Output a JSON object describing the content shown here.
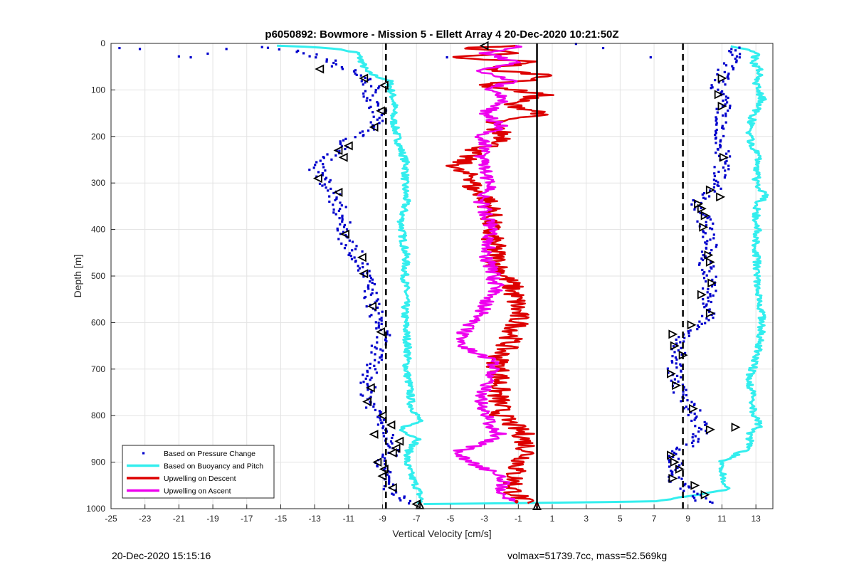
{
  "chart_data": {
    "type": "scatter",
    "title": "p6050892: Bowmore - Mission 5 - Ellett Array 4 20-Dec-2020 10:21:50Z",
    "xlabel": "Vertical Velocity [cm/s]",
    "ylabel": "Depth [m]",
    "xlim": [
      -25,
      14
    ],
    "ylim": [
      0,
      1000
    ],
    "y_reversed": true,
    "grid": true,
    "x_ticks": [
      -25,
      -23,
      -21,
      -19,
      -17,
      -15,
      -13,
      -11,
      -9,
      -7,
      -5,
      -3,
      -1,
      1,
      3,
      5,
      7,
      9,
      11,
      13
    ],
    "y_ticks": [
      0,
      100,
      200,
      300,
      400,
      500,
      600,
      700,
      800,
      900,
      1000
    ],
    "legend_position": "bottom-left",
    "reference_lines": [
      {
        "style": "dashed",
        "color": "#000000",
        "x": -8.8
      },
      {
        "style": "solid",
        "color": "#000000",
        "x": 0.1
      },
      {
        "style": "dashed",
        "color": "#000000",
        "x": 8.7
      }
    ],
    "series": [
      {
        "name": "Based on Pressure Change",
        "style": "points",
        "color": "#0000cc",
        "profiles": [
          {
            "depth": [
              10,
              20,
              35,
              50,
              70,
              95,
              120,
              150,
              180,
              210,
              240,
              270,
              300,
              330,
              360,
              390,
              420,
              450,
              480,
              510,
              540,
              570,
              600,
              630,
              660,
              690,
              720,
              750,
              780,
              810,
              840,
              870,
              900,
              930,
              960,
              990
            ],
            "velocity": [
              -15.5,
              -13.5,
              -12.3,
              -11.5,
              -10.2,
              -9.6,
              -9.8,
              -9.1,
              -9.6,
              -11.1,
              -12.0,
              -12.9,
              -12.3,
              -11.8,
              -11.5,
              -11.3,
              -11.2,
              -10.6,
              -10.2,
              -9.9,
              -9.7,
              -9.5,
              -9.2,
              -9.0,
              -9.3,
              -9.6,
              -9.8,
              -9.9,
              -9.6,
              -9.0,
              -8.6,
              -8.2,
              -9.0,
              -8.9,
              -8.5,
              -7.6
            ]
          },
          {
            "depth": [
              10,
              25,
              50,
              75,
              100,
              130,
              160,
              190,
              220,
              250,
              280,
              310,
              340,
              370,
              400,
              430,
              460,
              490,
              520,
              550,
              580,
              610,
              640,
              670,
              700,
              730,
              760,
              790,
              820,
              850,
              880,
              910,
              940,
              970,
              990
            ],
            "velocity": [
              11.6,
              11.8,
              11.3,
              11.0,
              10.7,
              11.1,
              11.0,
              10.6,
              10.9,
              11.1,
              10.9,
              10.8,
              9.6,
              9.8,
              10.2,
              10.3,
              10.0,
              10.2,
              10.4,
              10.0,
              10.3,
              9.6,
              8.3,
              8.5,
              8.2,
              8.3,
              8.7,
              9.3,
              9.8,
              9.7,
              8.1,
              8.3,
              8.2,
              9.4,
              10.1
            ]
          }
        ],
        "outliers": [
          [
            -24.5,
            10
          ],
          [
            -23.3,
            12
          ],
          [
            -21.0,
            28
          ],
          [
            -20.3,
            30
          ],
          [
            -19.3,
            22
          ],
          [
            -18.2,
            12
          ],
          [
            -16.1,
            8
          ],
          [
            6.8,
            30
          ],
          [
            4.0,
            10
          ],
          [
            11.8,
            15
          ],
          [
            2.4,
            1
          ],
          [
            -5.2,
            30
          ]
        ]
      },
      {
        "name": "Based on Buoyancy and Pitch",
        "style": "line",
        "color": "#33eeee",
        "profiles": [
          {
            "depth": [
              5,
              10,
              20,
              40,
              60,
              70,
              80,
              100,
              130,
              160,
              190,
              220,
              260,
              300,
              340,
              380,
              420,
              460,
              500,
              540,
              580,
              620,
              660,
              700,
              740,
              780,
              810,
              830,
              850,
              870,
              900,
              930,
              960,
              985,
              990
            ],
            "velocity": [
              -15.0,
              -12.0,
              -10.5,
              -10.2,
              -10.0,
              -9.4,
              -8.6,
              -8.5,
              -8.3,
              -8.4,
              -8.2,
              -8.0,
              -7.6,
              -7.7,
              -7.6,
              -7.9,
              -7.8,
              -7.6,
              -7.7,
              -7.6,
              -7.7,
              -7.6,
              -7.5,
              -7.6,
              -7.4,
              -7.3,
              -6.8,
              -8.0,
              -6.8,
              -7.4,
              -7.6,
              -7.3,
              -6.9,
              -6.7,
              -7.0
            ]
          },
          {
            "depth": [
              990,
              985,
              960,
              930,
              900,
              870,
              830,
              825,
              800,
              760,
              720,
              680,
              640,
              600,
              560,
              520,
              480,
              440,
              400,
              360,
              340,
              330,
              300,
              250,
              200,
              160,
              120,
              90,
              60,
              40,
              20,
              5
            ],
            "velocity": [
              -6.7,
              6.9,
              11.3,
              11.1,
              10.9,
              12.6,
              12.7,
              13.3,
              12.9,
              12.8,
              12.6,
              13.0,
              13.2,
              13.4,
              13.3,
              13.0,
              13.1,
              13.0,
              13.1,
              13.0,
              13.2,
              13.6,
              13.0,
              13.2,
              12.6,
              12.8,
              13.4,
              13.0,
              13.3,
              12.8,
              13.1,
              11.6
            ]
          }
        ]
      },
      {
        "name": "Upwelling on Descent",
        "style": "line",
        "color": "#dd0000",
        "profiles": [
          {
            "depth": [
              5,
              10,
              20,
              30,
              40,
              55,
              70,
              90,
              110,
              130,
              150,
              170,
              190,
              210,
              230,
              250,
              270,
              290,
              310,
              330,
              360,
              400,
              440,
              480,
              520,
              560,
              600,
              640,
              680,
              720,
              760,
              800,
              840,
              880,
              920,
              960,
              990
            ],
            "velocity": [
              -1.0,
              -5.0,
              -0.8,
              -5.5,
              0.3,
              -3.2,
              1.4,
              -3.1,
              0.5,
              -1.7,
              0.6,
              -2.8,
              -2.1,
              -1.6,
              -3.6,
              -4.2,
              -4.8,
              -3.5,
              -3.8,
              -2.9,
              -2.6,
              -2.7,
              -2.4,
              -2.2,
              -1.4,
              -1.1,
              -1.0,
              -1.5,
              -2.2,
              -2.1,
              -2.2,
              -2.0,
              -0.7,
              -0.4,
              -1.2,
              -1.3,
              -0.6
            ]
          }
        ],
        "scatter_points": [
          [
            -1.1,
            985
          ],
          [
            0.1,
            990
          ]
        ]
      },
      {
        "name": "Upwelling on Ascent",
        "style": "line",
        "color": "#ee00ee",
        "profiles": [
          {
            "depth": [
              985,
              960,
              930,
              900,
              880,
              860,
              840,
              820,
              800,
              780,
              760,
              740,
              720,
              700,
              680,
              660,
              640,
              620,
              600,
              580,
              560,
              540,
              520,
              500,
              480,
              460,
              440,
              420,
              400,
              370,
              340,
              310,
              280,
              250,
              220,
              200,
              180,
              150,
              120,
              100,
              80,
              60,
              40,
              20,
              5
            ],
            "velocity": [
              -1.4,
              -2.0,
              -1.9,
              -3.8,
              -4.8,
              -3.2,
              -2.1,
              -2.6,
              -2.8,
              -3.2,
              -3.3,
              -3.0,
              -2.7,
              -2.4,
              -2.6,
              -3.8,
              -4.6,
              -4.2,
              -3.8,
              -3.2,
              -2.9,
              -2.5,
              -2.3,
              -2.5,
              -2.6,
              -2.9,
              -2.8,
              -2.7,
              -2.6,
              -2.8,
              -3.2,
              -2.6,
              -2.9,
              -3.2,
              -2.8,
              -3.6,
              -1.9,
              -3.0,
              -1.6,
              -2.9,
              -1.2,
              -3.4,
              -1.2,
              -3.0,
              -0.8
            ]
          }
        ]
      }
    ],
    "marker_series": [
      {
        "marker": "triangle-left",
        "color": "#000000",
        "points": [
          [
            -12.7,
            55
          ],
          [
            -10.1,
            75
          ],
          [
            -8.9,
            90
          ],
          [
            -9.1,
            145
          ],
          [
            -9.5,
            180
          ],
          [
            -11.0,
            220
          ],
          [
            -11.6,
            230
          ],
          [
            -11.3,
            245
          ],
          [
            -12.8,
            290
          ],
          [
            -11.6,
            320
          ],
          [
            -11.2,
            410
          ],
          [
            -10.2,
            460
          ],
          [
            -10.1,
            495
          ],
          [
            -9.6,
            565
          ],
          [
            -9.1,
            620
          ],
          [
            -9.7,
            740
          ],
          [
            -9.9,
            770
          ],
          [
            -9.0,
            800
          ],
          [
            -8.5,
            820
          ],
          [
            -9.5,
            840
          ],
          [
            -8.0,
            855
          ],
          [
            -8.2,
            870
          ],
          [
            -8.4,
            880
          ],
          [
            -9.3,
            900
          ],
          [
            -8.9,
            915
          ],
          [
            -9.0,
            930
          ],
          [
            -8.4,
            955
          ],
          [
            -7.0,
            990
          ],
          [
            -3.0,
            5
          ]
        ]
      },
      {
        "marker": "triangle-right",
        "color": "#000000",
        "points": [
          [
            11.0,
            75
          ],
          [
            10.8,
            110
          ],
          [
            11.0,
            135
          ],
          [
            11.1,
            245
          ],
          [
            10.3,
            315
          ],
          [
            10.9,
            330
          ],
          [
            9.6,
            345
          ],
          [
            9.8,
            355
          ],
          [
            10.0,
            370
          ],
          [
            9.9,
            395
          ],
          [
            10.2,
            455
          ],
          [
            10.3,
            470
          ],
          [
            10.4,
            515
          ],
          [
            9.8,
            540
          ],
          [
            10.3,
            580
          ],
          [
            9.2,
            605
          ],
          [
            8.1,
            625
          ],
          [
            8.2,
            650
          ],
          [
            8.7,
            670
          ],
          [
            8.0,
            710
          ],
          [
            8.3,
            735
          ],
          [
            9.3,
            785
          ],
          [
            10.3,
            830
          ],
          [
            11.8,
            825
          ],
          [
            8.0,
            885
          ],
          [
            8.2,
            900
          ],
          [
            8.5,
            915
          ],
          [
            8.1,
            935
          ],
          [
            9.4,
            950
          ],
          [
            10.0,
            970
          ]
        ]
      },
      {
        "marker": "triangle-up",
        "color": "#000000",
        "points": [
          [
            -6.8,
            992
          ],
          [
            0.1,
            994
          ]
        ]
      }
    ],
    "legend": [
      "Based on Pressure Change",
      "Based on Buoyancy and Pitch",
      "Upwelling on Descent",
      "Upwelling on Ascent"
    ]
  },
  "footer": {
    "timestamp": "20-Dec-2020 15:15:16",
    "summary": "volmax=51739.7cc, mass=52.569kg"
  }
}
